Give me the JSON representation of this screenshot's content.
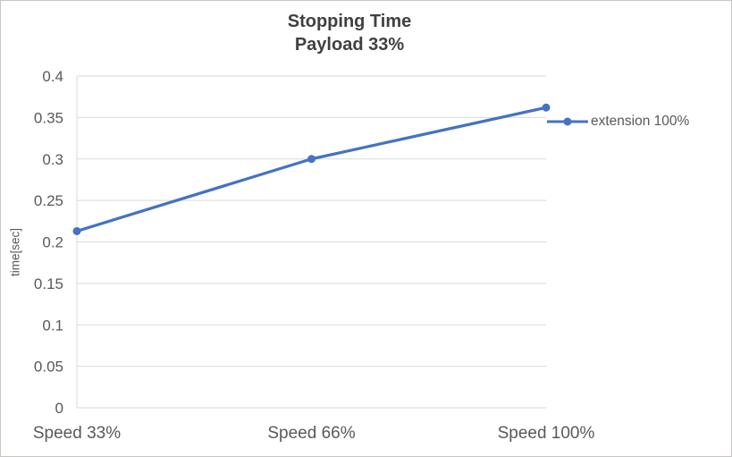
{
  "chart_data": {
    "type": "line",
    "title": "Stopping Time",
    "subtitle": "Payload 33%",
    "categories": [
      "Speed 33%",
      "Speed 66%",
      "Speed 100%"
    ],
    "series": [
      {
        "name": "extension 100%",
        "values": [
          0.213,
          0.3,
          0.362
        ]
      }
    ],
    "xlabel": "",
    "ylabel": "time[sec]",
    "ylim": [
      0,
      0.4
    ],
    "ytick_step": 0.05,
    "ytick_labels": [
      "0",
      "0.05",
      "0.1",
      "0.15",
      "0.2",
      "0.25",
      "0.3",
      "0.35",
      "0.4"
    ],
    "grid": true,
    "legend_position": "right",
    "colors": {
      "line": "#4472C4",
      "grid": "#D9D9D9",
      "text": "#595959",
      "title": "#404040"
    }
  }
}
